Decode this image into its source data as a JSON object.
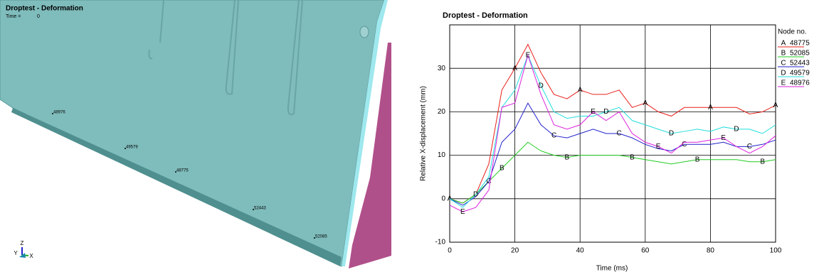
{
  "viewport": {
    "title": "Droptest - Deformation",
    "time_label": "Time =",
    "time_value": "0",
    "nodes": [
      "48976",
      "49579",
      "48775",
      "52443",
      "52085"
    ],
    "axes": [
      "Z",
      "Y",
      "X"
    ]
  },
  "chart_data": {
    "type": "line",
    "title": "Droptest - Deformation",
    "x_label": "Time (ms)",
    "y_label": "Relative X-displacement (mm)",
    "legend_title": "Node no.",
    "x": [
      0,
      4,
      8,
      12,
      16,
      20,
      24,
      28,
      32,
      36,
      40,
      44,
      48,
      52,
      56,
      60,
      64,
      68,
      72,
      76,
      80,
      84,
      88,
      92,
      96,
      100
    ],
    "series": [
      {
        "name": "48775",
        "marker": "A",
        "color": "#e8201a",
        "values": [
          0,
          -1,
          1,
          8,
          25,
          30,
          35.5,
          29,
          24,
          23,
          25,
          24,
          24,
          25,
          21,
          22,
          20,
          19,
          21,
          21,
          21,
          21,
          21,
          19.5,
          20,
          21.5
        ]
      },
      {
        "name": "52085",
        "marker": "B",
        "color": "#22cc22",
        "values": [
          0,
          -1,
          1,
          4,
          7,
          10,
          13,
          11,
          10,
          9.5,
          10,
          10,
          10,
          10,
          9.5,
          9,
          8.5,
          8,
          8.5,
          9,
          9,
          9,
          9,
          8.5,
          8.5,
          9
        ]
      },
      {
        "name": "52443",
        "marker": "C",
        "color": "#2222cc",
        "values": [
          0,
          -1.5,
          0.5,
          4,
          13,
          16,
          22,
          17,
          14.5,
          14,
          15,
          16,
          15,
          15,
          14,
          12.5,
          11.5,
          11,
          12.5,
          12.5,
          12.5,
          13,
          12,
          12,
          12.5,
          13.5
        ]
      },
      {
        "name": "49579",
        "marker": "D",
        "color": "#22dddd",
        "values": [
          0,
          -2,
          1,
          5,
          21,
          25,
          33,
          26,
          20,
          18.5,
          19,
          19,
          20,
          21,
          18,
          17,
          16,
          15,
          15.5,
          16,
          15.5,
          16.5,
          16,
          16,
          15,
          17
        ]
      },
      {
        "name": "48976",
        "marker": "E",
        "color": "#dd22dd",
        "values": [
          -1.5,
          -3,
          -2,
          2,
          21,
          22,
          33,
          24,
          17,
          16,
          17,
          20,
          18,
          20,
          15,
          13,
          12,
          10.5,
          13,
          13,
          13.5,
          14,
          12,
          10.5,
          12,
          14.5
        ]
      }
    ],
    "xlim": [
      0,
      100
    ],
    "xticks": [
      0,
      20,
      40,
      60,
      80,
      100
    ],
    "ylim": [
      -10,
      40
    ],
    "yticks": [
      -10,
      0,
      10,
      20,
      30
    ],
    "grid": true
  }
}
